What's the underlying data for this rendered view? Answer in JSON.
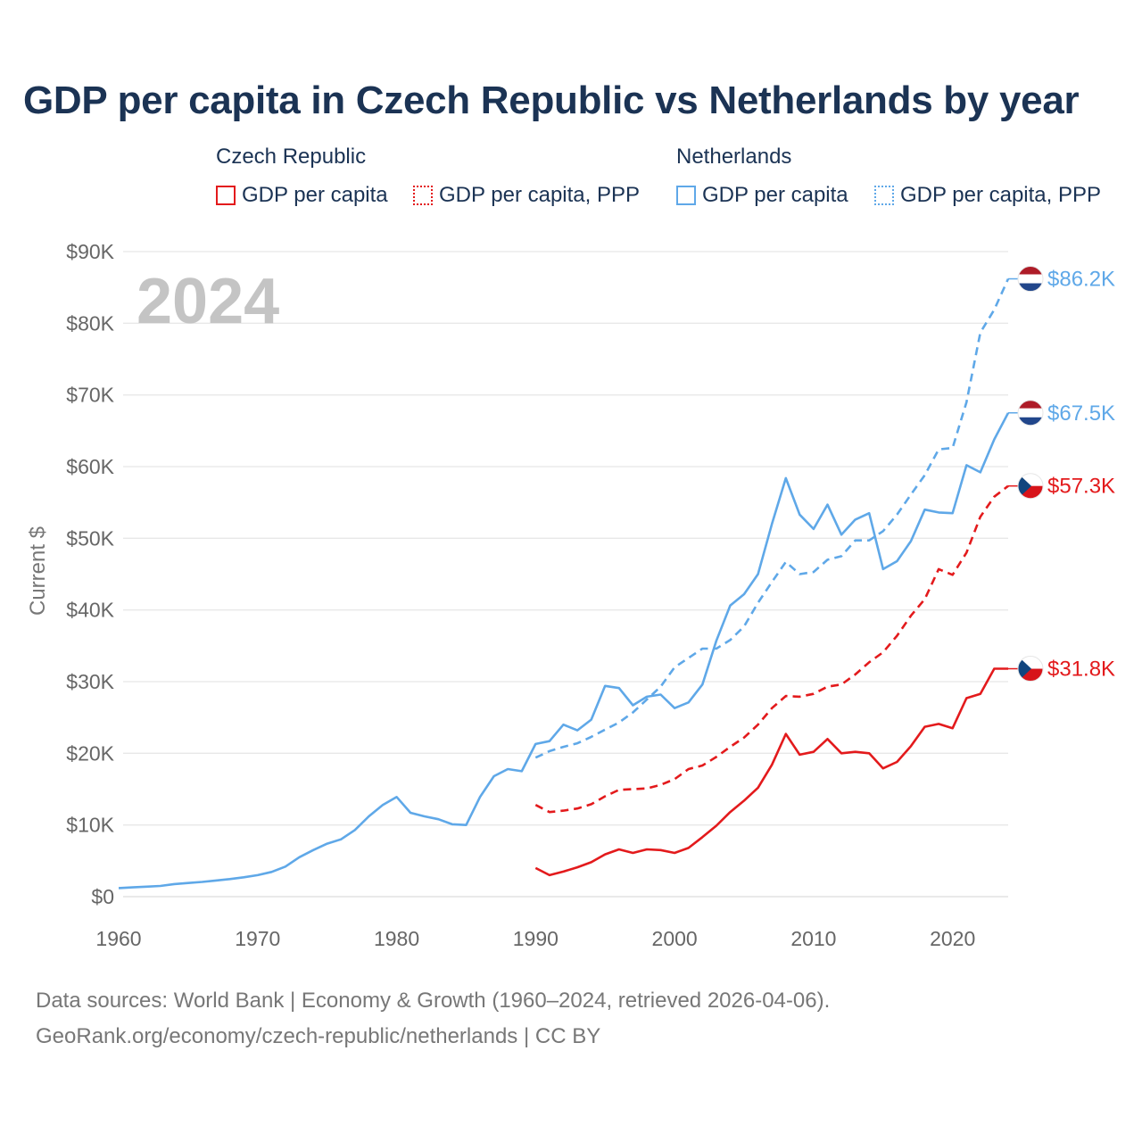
{
  "title": "GDP per capita in Czech Republic vs Netherlands by year",
  "legend": {
    "groups": [
      {
        "name": "Czech Republic",
        "items": [
          "GDP per capita",
          "GDP per capita, PPP"
        ],
        "color": "#e31a1c"
      },
      {
        "name": "Netherlands",
        "items": [
          "GDP per capita",
          "GDP per capita, PPP"
        ],
        "color": "#5fa8e8"
      }
    ]
  },
  "year_label": "2024",
  "footer": {
    "line1": "Data sources: World Bank | Economy & Growth (1960–2024, retrieved 2026-04-06).",
    "line2": "GeoRank.org/economy/czech-republic/netherlands | CC BY"
  },
  "chart_data": {
    "type": "line",
    "title": "GDP per capita in Czech Republic vs Netherlands by year",
    "xlabel": "",
    "ylabel": "Current $",
    "xlim": [
      1960,
      2024
    ],
    "ylim": [
      0,
      90000
    ],
    "x_ticks": [
      1960,
      1970,
      1980,
      1990,
      2000,
      2010,
      2020
    ],
    "x_tick_labels": [
      "1960",
      "1970",
      "1980",
      "1990",
      "2000",
      "2010",
      "2020"
    ],
    "y_ticks": [
      0,
      10000,
      20000,
      30000,
      40000,
      50000,
      60000,
      70000,
      80000,
      90000
    ],
    "y_tick_labels": [
      "$0",
      "$10K",
      "$20K",
      "$30K",
      "$40K",
      "$50K",
      "$60K",
      "$70K",
      "$80K",
      "$90K"
    ],
    "grid": true,
    "series": [
      {
        "name": "Netherlands GDP per capita",
        "color": "#5fa8e8",
        "style": "solid",
        "start_year": 1960,
        "values": [
          1200,
          1300,
          1400,
          1500,
          1750,
          1900,
          2050,
          2250,
          2450,
          2700,
          3000,
          3450,
          4200,
          5500,
          6500,
          7400,
          8000,
          9300,
          11200,
          12800,
          13900,
          11700,
          11200,
          10800,
          10100,
          10000,
          13900,
          16800,
          17800,
          17500,
          21300,
          21700,
          24000,
          23200,
          24700,
          29400,
          29100,
          26700,
          27900,
          28200,
          26300,
          27100,
          29600,
          35700,
          40600,
          42200,
          45000,
          52000,
          58400,
          53300,
          51300,
          54700,
          50500,
          52600,
          53500,
          45700,
          46800,
          49600,
          54000,
          53600,
          53500,
          60200,
          59200,
          63800,
          67500
        ],
        "end_label": "$67.5K",
        "end_icon": "netherlands-flag"
      },
      {
        "name": "Netherlands GDP per capita, PPP",
        "color": "#5fa8e8",
        "style": "dashed",
        "start_year": 1990,
        "values": [
          19400,
          20300,
          20900,
          21400,
          22300,
          23300,
          24300,
          25700,
          27500,
          29300,
          32000,
          33300,
          34600,
          34600,
          35800,
          37700,
          41000,
          43900,
          46700,
          45000,
          45300,
          47000,
          47500,
          49700,
          49700,
          51000,
          53300,
          56100,
          58800,
          62400,
          62600,
          69000,
          78700,
          81900,
          86200
        ],
        "end_label": "$86.2K",
        "end_icon": "netherlands-flag"
      },
      {
        "name": "Czech Republic GDP per capita, PPP",
        "color": "#e31a1c",
        "style": "dashed",
        "start_year": 1990,
        "values": [
          12800,
          11800,
          12000,
          12300,
          12900,
          14000,
          14900,
          15000,
          15100,
          15600,
          16400,
          17800,
          18300,
          19500,
          20900,
          22200,
          24000,
          26300,
          28000,
          27900,
          28300,
          29300,
          29600,
          31000,
          32700,
          34100,
          36400,
          39200,
          41500,
          45700,
          44900,
          48000,
          53000,
          55800,
          57300
        ],
        "end_label": "$57.3K",
        "end_icon": "czech-flag"
      },
      {
        "name": "Czech Republic GDP per capita",
        "color": "#e31a1c",
        "style": "solid",
        "start_year": 1990,
        "values": [
          4000,
          3000,
          3500,
          4100,
          4800,
          5900,
          6600,
          6100,
          6600,
          6500,
          6100,
          6800,
          8300,
          9900,
          11800,
          13400,
          15200,
          18400,
          22700,
          19800,
          20200,
          22000,
          20000,
          20200,
          20000,
          17900,
          18800,
          21000,
          23700,
          24100,
          23500,
          27700,
          28300,
          31800,
          31800
        ],
        "end_label": "$31.8K",
        "end_icon": "czech-flag"
      }
    ]
  }
}
